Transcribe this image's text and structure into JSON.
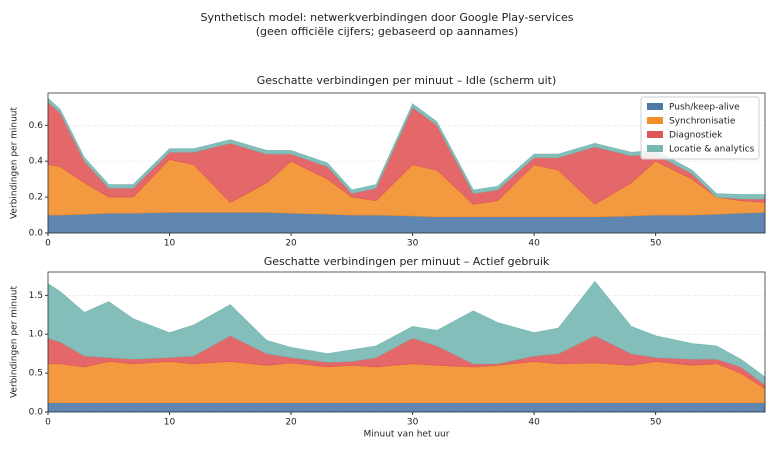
{
  "suptitle": [
    "Synthetisch model: netwerkverbindingen door Google Play-services",
    "(geen officiële cijfers; gebaseerd op aannames)"
  ],
  "chart_data": [
    {
      "type": "stacked_area",
      "title": "Geschatte verbindingen per minuut – Idle (scherm uit)",
      "ylabel": "Verbindingen per minuut",
      "x": [
        0,
        1,
        3,
        5,
        7,
        10,
        12,
        15,
        18,
        20,
        23,
        25,
        27,
        30,
        32,
        35,
        37,
        40,
        42,
        45,
        48,
        50,
        53,
        55,
        57,
        59
      ],
      "xlim": [
        0,
        59
      ],
      "xticks": [
        0,
        10,
        20,
        30,
        40,
        50
      ],
      "ylim": [
        0,
        0.78
      ],
      "yticks": [
        {
          "value": 0,
          "label": "0.0"
        },
        {
          "value": 0.2,
          "label": "0.2"
        },
        {
          "value": 0.4,
          "label": "0.4"
        },
        {
          "value": 0.6,
          "label": "0.6"
        }
      ],
      "grid": true,
      "legend": "upper right",
      "series": [
        {
          "name": "Push/keep-alive",
          "color": "#4e79a7",
          "values": [
            0.1,
            0.1,
            0.105,
            0.11,
            0.11,
            0.115,
            0.115,
            0.115,
            0.115,
            0.11,
            0.105,
            0.1,
            0.1,
            0.095,
            0.09,
            0.09,
            0.09,
            0.09,
            0.09,
            0.09,
            0.095,
            0.1,
            0.1,
            0.105,
            0.11,
            0.115
          ]
        },
        {
          "name": "Synchronisatie",
          "color": "#f28e2b",
          "values": [
            0.28,
            0.27,
            0.175,
            0.09,
            0.09,
            0.295,
            0.265,
            0.055,
            0.165,
            0.29,
            0.195,
            0.1,
            0.08,
            0.285,
            0.26,
            0.07,
            0.09,
            0.29,
            0.26,
            0.07,
            0.185,
            0.3,
            0.2,
            0.095,
            0.07,
            0.055
          ]
        },
        {
          "name": "Diagnostiek",
          "color": "#e15759",
          "values": [
            0.35,
            0.3,
            0.12,
            0.05,
            0.05,
            0.04,
            0.07,
            0.33,
            0.16,
            0.04,
            0.07,
            0.02,
            0.07,
            0.32,
            0.25,
            0.06,
            0.06,
            0.04,
            0.07,
            0.32,
            0.15,
            0.04,
            0.03,
            0,
            0.01,
            0.02
          ]
        },
        {
          "name": "Locatie & analytics",
          "color": "#76b7b2",
          "values": [
            0.02,
            0.02,
            0.02,
            0.02,
            0.02,
            0.02,
            0.02,
            0.02,
            0.02,
            0.02,
            0.02,
            0.02,
            0.02,
            0.02,
            0.02,
            0.02,
            0.02,
            0.02,
            0.02,
            0.02,
            0.02,
            0.02,
            0.02,
            0.02,
            0.025,
            0.025
          ]
        }
      ]
    },
    {
      "type": "stacked_area",
      "title": "Geschatte verbindingen per minuut – Actief gebruik",
      "ylabel": "Verbindingen per minuut",
      "xlabel": "Minuut van het uur",
      "x": [
        0,
        1,
        3,
        5,
        7,
        10,
        12,
        15,
        18,
        20,
        23,
        25,
        27,
        30,
        32,
        35,
        37,
        40,
        42,
        45,
        48,
        50,
        53,
        55,
        57,
        59
      ],
      "xlim": [
        0,
        59
      ],
      "xticks": [
        0,
        10,
        20,
        30,
        40,
        50
      ],
      "ylim": [
        0,
        1.8
      ],
      "yticks": [
        {
          "value": 0,
          "label": "0.0"
        },
        {
          "value": 0.5,
          "label": "0.5"
        },
        {
          "value": 1,
          "label": "1.0"
        },
        {
          "value": 1.5,
          "label": "1.5"
        }
      ],
      "grid": true,
      "series": [
        {
          "color": "#4e79a7",
          "values": [
            0.12,
            0.12,
            0.12,
            0.12,
            0.12,
            0.12,
            0.12,
            0.12,
            0.12,
            0.12,
            0.12,
            0.12,
            0.12,
            0.12,
            0.12,
            0.12,
            0.12,
            0.12,
            0.12,
            0.12,
            0.12,
            0.12,
            0.12,
            0.12,
            0.12,
            0.12
          ]
        },
        {
          "color": "#f28e2b",
          "values": [
            0.5,
            0.5,
            0.46,
            0.53,
            0.5,
            0.53,
            0.5,
            0.53,
            0.48,
            0.51,
            0.46,
            0.48,
            0.46,
            0.5,
            0.48,
            0.46,
            0.48,
            0.53,
            0.5,
            0.51,
            0.48,
            0.53,
            0.48,
            0.5,
            0.38,
            0.18
          ]
        },
        {
          "color": "#e15759",
          "values": [
            0.33,
            0.28,
            0.14,
            0.05,
            0.06,
            0.05,
            0.1,
            0.33,
            0.15,
            0.07,
            0.06,
            0.05,
            0.12,
            0.33,
            0.25,
            0.04,
            0.02,
            0.07,
            0.13,
            0.35,
            0.15,
            0.05,
            0.08,
            0.06,
            0.08,
            0.05
          ]
        },
        {
          "color": "#76b7b2",
          "values": [
            0.7,
            0.65,
            0.56,
            0.72,
            0.52,
            0.32,
            0.4,
            0.4,
            0.17,
            0.13,
            0.11,
            0.15,
            0.15,
            0.15,
            0.2,
            0.68,
            0.53,
            0.3,
            0.33,
            0.7,
            0.35,
            0.28,
            0.2,
            0.17,
            0.1,
            0.1
          ]
        }
      ]
    }
  ]
}
